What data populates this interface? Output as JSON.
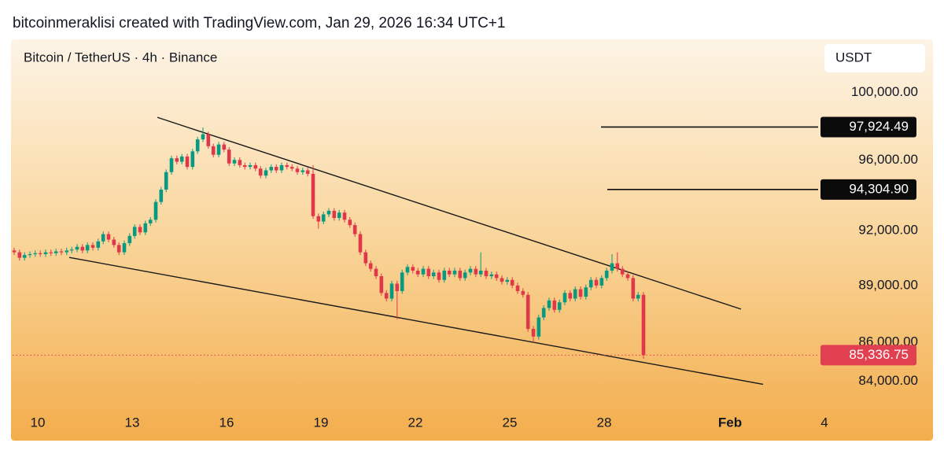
{
  "header": "bitcoinmeraklisi created with TradingView.com, Jan 29, 2026 16:34 UTC+1",
  "chart_data": {
    "type": "candlestick",
    "title": "Bitcoin / TetherUS · 4h · Binance",
    "currency": "USDT",
    "log_scale": true,
    "up_color": "#089981",
    "down_color": "#e0384a",
    "xlim": [
      9.2,
      34.8
    ],
    "ylim": [
      82800,
      103000
    ],
    "xticks": [
      10,
      13,
      16,
      19,
      22,
      25,
      28,
      {
        "value": 32,
        "label": "Feb"
      },
      {
        "value": 35,
        "label": "4"
      }
    ],
    "yticks": [
      {
        "value": 84000,
        "label": "84,000.00"
      },
      {
        "value": 86000,
        "label": "86,000.00"
      },
      {
        "value": 89000,
        "label": "89,000.00"
      },
      {
        "value": 92000,
        "label": "92,000.00"
      },
      {
        "value": 96000,
        "label": "96,000.00"
      },
      {
        "value": 100000,
        "label": "100,000.00"
      }
    ],
    "x": [
      9.25,
      9.42,
      9.58,
      9.75,
      9.92,
      10.08,
      10.25,
      10.42,
      10.58,
      10.75,
      10.92,
      11.08,
      11.25,
      11.42,
      11.58,
      11.75,
      11.92,
      12.08,
      12.25,
      12.42,
      12.58,
      12.75,
      12.92,
      13.08,
      13.25,
      13.42,
      13.58,
      13.75,
      13.92,
      14.08,
      14.25,
      14.42,
      14.58,
      14.75,
      14.92,
      15.08,
      15.25,
      15.42,
      15.58,
      15.75,
      15.92,
      16.08,
      16.25,
      16.42,
      16.58,
      16.75,
      16.92,
      17.08,
      17.25,
      17.42,
      17.58,
      17.75,
      17.92,
      18.08,
      18.25,
      18.42,
      18.58,
      18.75,
      18.92,
      19.08,
      19.25,
      19.42,
      19.58,
      19.75,
      19.92,
      20.08,
      20.25,
      20.42,
      20.58,
      20.75,
      20.92,
      21.08,
      21.25,
      21.42,
      21.58,
      21.75,
      21.92,
      22.08,
      22.25,
      22.42,
      22.58,
      22.75,
      22.92,
      23.08,
      23.25,
      23.42,
      23.58,
      23.75,
      23.92,
      24.08,
      24.25,
      24.42,
      24.58,
      24.75,
      24.92,
      25.08,
      25.25,
      25.42,
      25.58,
      25.75,
      25.92,
      26.08,
      26.25,
      26.42,
      26.58,
      26.75,
      26.92,
      27.08,
      27.25,
      27.42,
      27.58,
      27.75,
      27.92,
      28.08,
      28.25,
      28.42,
      28.58,
      28.75,
      28.92,
      29.08,
      29.25
    ],
    "open": [
      90900,
      90800,
      90500,
      90650,
      90700,
      90750,
      90700,
      90800,
      90750,
      90850,
      90800,
      90900,
      90950,
      91100,
      90900,
      91200,
      91050,
      91400,
      91800,
      91500,
      91200,
      90800,
      91300,
      91700,
      92200,
      91900,
      92400,
      92600,
      93600,
      94300,
      95300,
      96100,
      95900,
      96200,
      95600,
      96500,
      97200,
      97500,
      96800,
      96300,
      96900,
      96600,
      95800,
      96000,
      95700,
      95600,
      95700,
      95500,
      95100,
      95400,
      95600,
      95400,
      95700,
      95600,
      95500,
      95300,
      95400,
      95200,
      92800,
      92500,
      92900,
      93100,
      92700,
      93000,
      92600,
      92300,
      91800,
      90800,
      90200,
      89900,
      89500,
      88600,
      88300,
      89100,
      88700,
      89700,
      90000,
      89800,
      89600,
      89900,
      89500,
      89700,
      89300,
      89800,
      89600,
      89800,
      89400,
      89700,
      89900,
      89600,
      89800,
      89500,
      89600,
      89400,
      89200,
      89300,
      89000,
      88700,
      88500,
      86700,
      86300,
      87300,
      87800,
      88200,
      87700,
      88100,
      88600,
      88300,
      88800,
      88400,
      88900,
      89300,
      89000,
      89400,
      89800,
      90200,
      89900,
      89600,
      89400,
      88300,
      88500
    ],
    "high": [
      91050,
      90950,
      90800,
      90850,
      90900,
      90900,
      90950,
      90950,
      91000,
      91000,
      91050,
      91100,
      91250,
      91250,
      91350,
      91350,
      91550,
      91950,
      91950,
      91650,
      91350,
      91450,
      91850,
      92350,
      92350,
      92550,
      92750,
      93750,
      94450,
      95450,
      96250,
      96250,
      96350,
      96350,
      96650,
      97350,
      97900,
      97650,
      96950,
      97050,
      97050,
      96750,
      96150,
      96150,
      95850,
      95850,
      95850,
      95650,
      95550,
      95750,
      95750,
      95850,
      95850,
      95750,
      95650,
      95550,
      95550,
      95700,
      92950,
      93050,
      93250,
      93250,
      93150,
      93150,
      92750,
      92450,
      91950,
      90950,
      90350,
      90050,
      89650,
      88750,
      89250,
      89250,
      89850,
      90150,
      90150,
      89950,
      90050,
      90050,
      89850,
      89850,
      89950,
      89950,
      89950,
      89950,
      89850,
      90050,
      90050,
      90800,
      89950,
      89750,
      89750,
      89550,
      89450,
      89450,
      89150,
      88850,
      88650,
      86850,
      87450,
      87950,
      88350,
      88350,
      88250,
      88750,
      88750,
      88950,
      88950,
      89050,
      89450,
      89450,
      89550,
      89950,
      90700,
      90800,
      90050,
      89750,
      89550,
      88650,
      88650
    ],
    "low": [
      90650,
      90350,
      90350,
      90500,
      90550,
      90550,
      90550,
      90600,
      90600,
      90650,
      90650,
      90750,
      90800,
      90750,
      90750,
      90900,
      90900,
      91250,
      91350,
      91050,
      90650,
      90650,
      91150,
      91550,
      91750,
      91750,
      92250,
      92450,
      93450,
      94150,
      95150,
      95750,
      95750,
      95450,
      95450,
      96350,
      97050,
      96650,
      96150,
      96150,
      96450,
      95650,
      95650,
      95550,
      95450,
      95450,
      95350,
      94950,
      94950,
      95250,
      95250,
      95250,
      95450,
      95350,
      95150,
      95150,
      95050,
      92650,
      92100,
      92350,
      92750,
      92550,
      92550,
      92450,
      92150,
      91650,
      90650,
      90050,
      89750,
      89350,
      88450,
      88150,
      88150,
      87200,
      88550,
      89550,
      89650,
      89450,
      89450,
      89350,
      89350,
      89150,
      89150,
      89450,
      89450,
      89250,
      89250,
      89550,
      89450,
      89450,
      89350,
      89350,
      89250,
      89050,
      89050,
      88850,
      88550,
      88350,
      86550,
      86000,
      86150,
      87150,
      87650,
      87550,
      87550,
      87950,
      88150,
      88150,
      88250,
      88250,
      88750,
      88850,
      88850,
      89250,
      89650,
      89750,
      89450,
      89250,
      88150,
      88150,
      85150
    ],
    "close": [
      90800,
      90500,
      90650,
      90700,
      90750,
      90700,
      90800,
      90750,
      90850,
      90800,
      90900,
      90950,
      91100,
      90900,
      91200,
      91050,
      91400,
      91800,
      91500,
      91200,
      90800,
      91300,
      91700,
      92200,
      91900,
      92400,
      92600,
      93600,
      94300,
      95300,
      96100,
      95900,
      96200,
      95600,
      96500,
      97200,
      97500,
      96800,
      96300,
      96900,
      96600,
      95800,
      96000,
      95700,
      95600,
      95700,
      95500,
      95100,
      95400,
      95600,
      95400,
      95700,
      95600,
      95500,
      95300,
      95400,
      95200,
      92800,
      92500,
      92900,
      93100,
      92700,
      93000,
      92600,
      92300,
      91800,
      90800,
      90200,
      89900,
      89500,
      88600,
      88300,
      89100,
      88700,
      89700,
      90000,
      89800,
      89600,
      89900,
      89500,
      89700,
      89300,
      89800,
      89600,
      89800,
      89400,
      89700,
      89900,
      89600,
      89800,
      89500,
      89600,
      89400,
      89200,
      89300,
      89000,
      88700,
      88500,
      86700,
      86300,
      87300,
      87800,
      88200,
      87700,
      88100,
      88600,
      88300,
      88800,
      88400,
      88900,
      89300,
      89000,
      89400,
      89800,
      90200,
      89900,
      89600,
      89400,
      88300,
      88500,
      85336.75
    ],
    "last_price": {
      "value": 85336.75,
      "label": "85,336.75"
    },
    "levels": [
      {
        "value": 97924.49,
        "label": "97,924.49",
        "x": 27.9
      },
      {
        "value": 94304.9,
        "label": "94,304.90",
        "x": 28.1
      }
    ],
    "trendlines": [
      {
        "x": [
          13.8,
          32.35
        ],
        "y": [
          98500,
          87740
        ]
      },
      {
        "x": [
          11.0,
          33.05
        ],
        "y": [
          90520,
          83850
        ]
      }
    ]
  }
}
